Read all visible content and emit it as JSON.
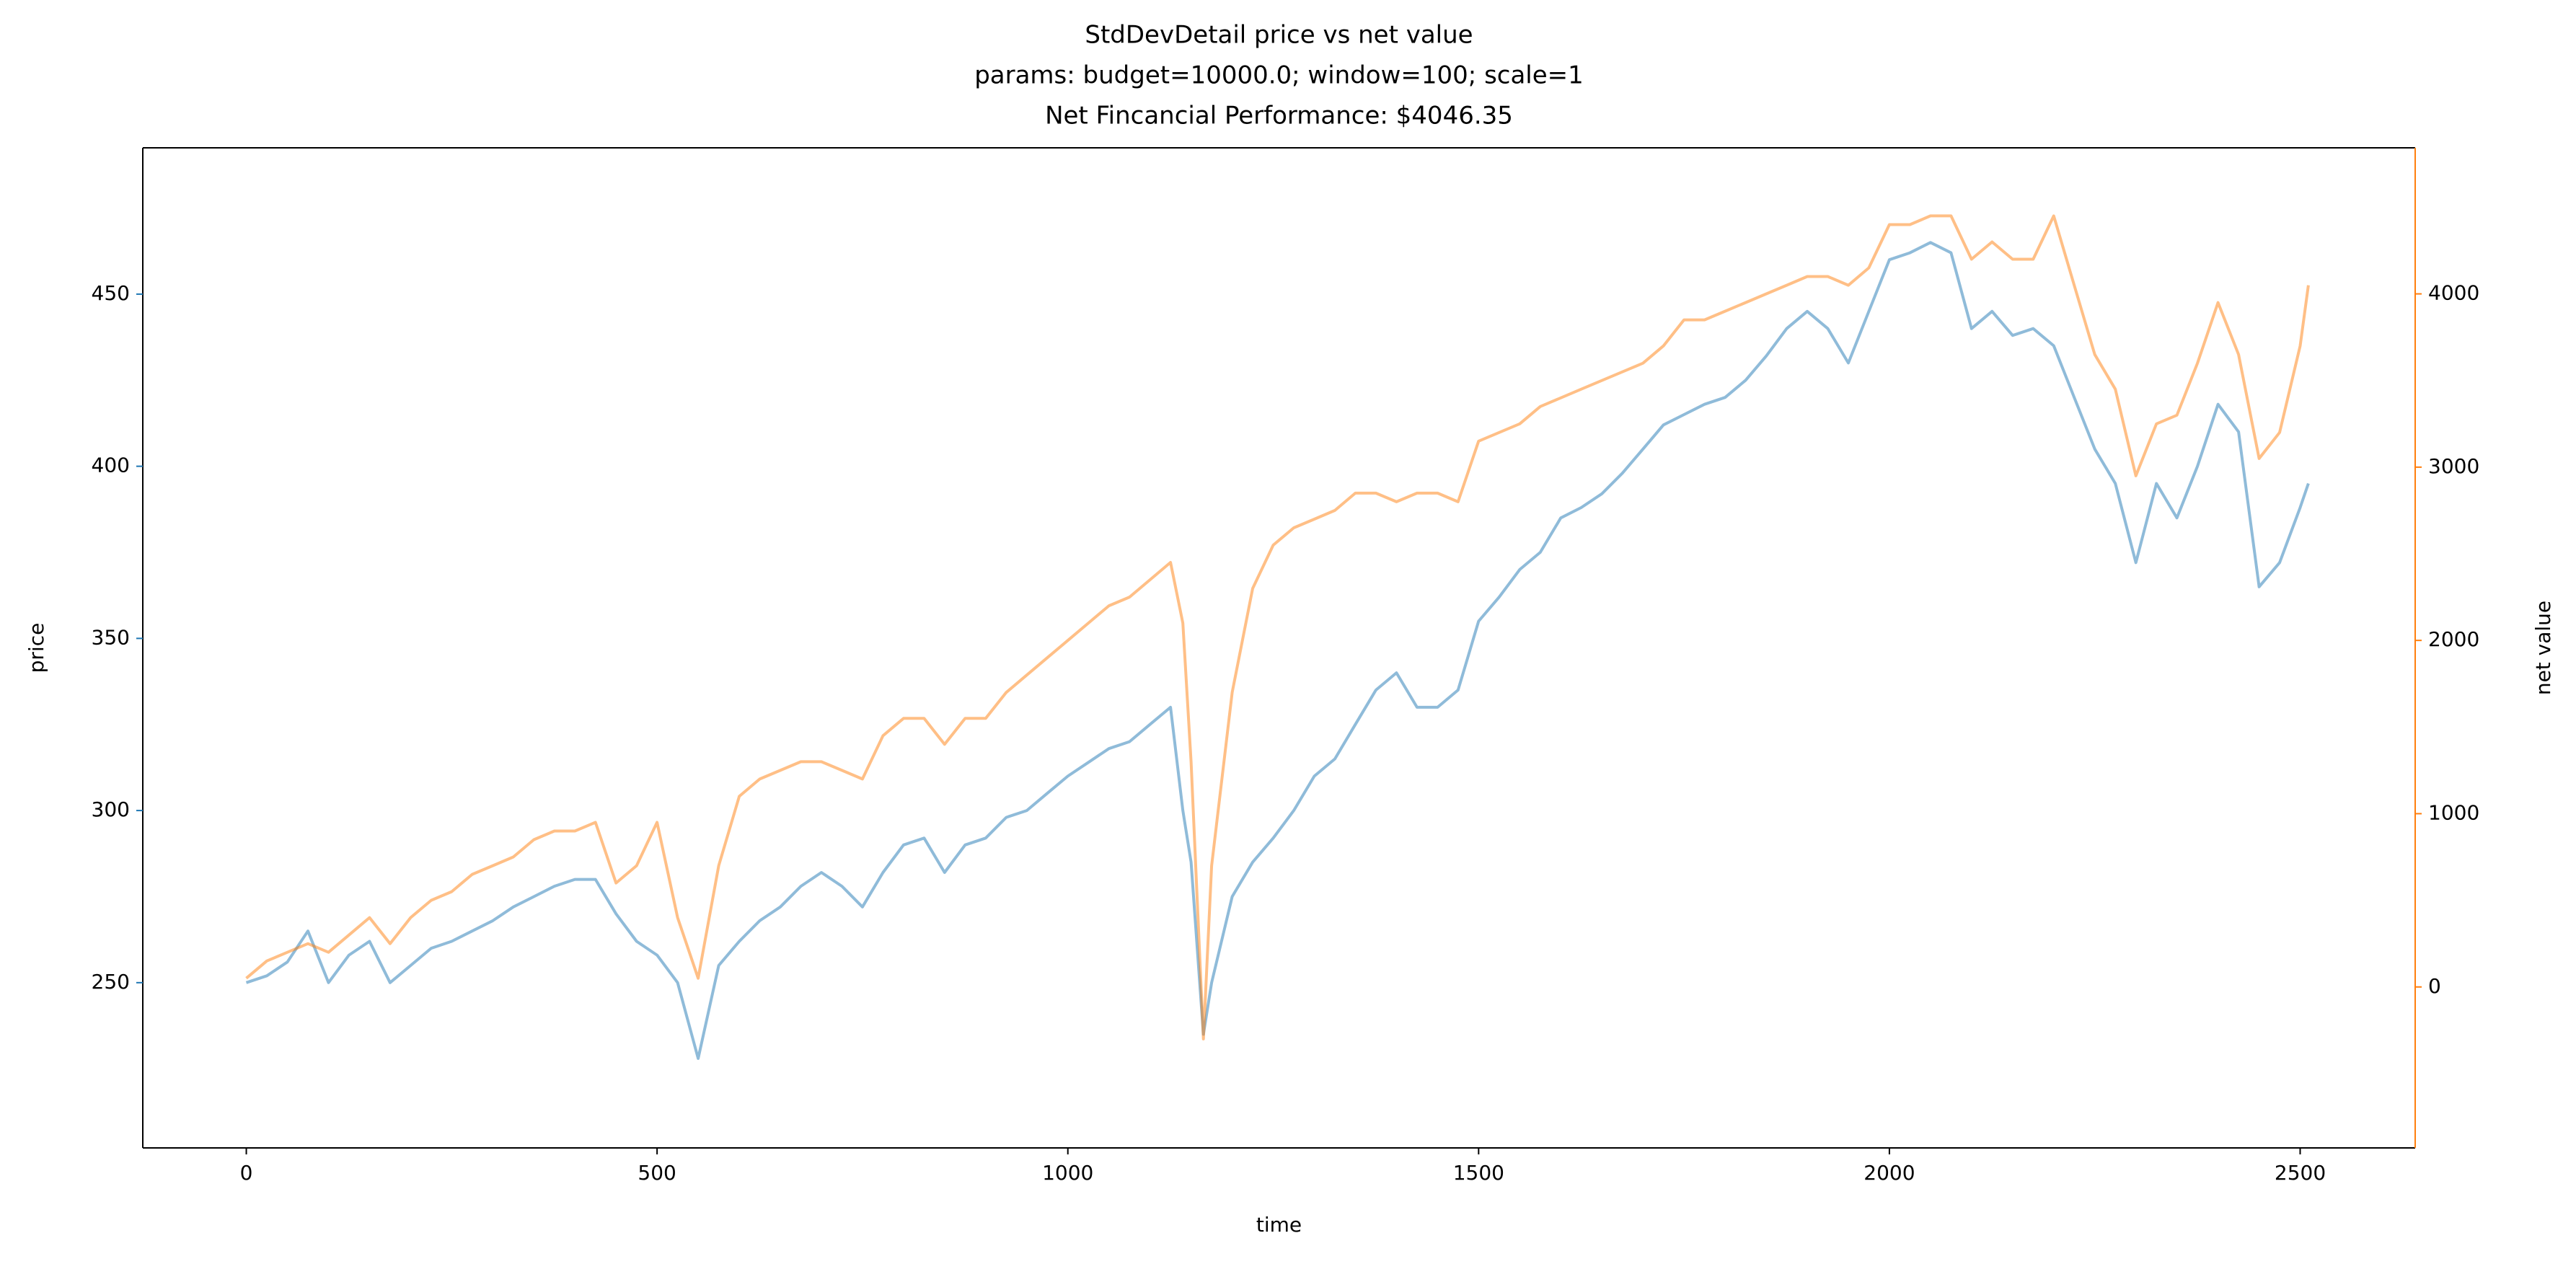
{
  "chart_data": {
    "type": "line",
    "title": [
      "StdDevDetail price vs net value",
      "params: budget=10000.0; window=100; scale=1",
      "Net Fincancial Performance: $4046.35"
    ],
    "x_label": "time",
    "y_label": "price",
    "y2_label": "net value",
    "x": [
      0,
      25,
      50,
      75,
      100,
      125,
      150,
      175,
      200,
      225,
      250,
      275,
      300,
      325,
      350,
      375,
      400,
      425,
      450,
      475,
      500,
      525,
      550,
      575,
      600,
      625,
      650,
      675,
      700,
      725,
      750,
      775,
      800,
      825,
      850,
      875,
      900,
      925,
      950,
      975,
      1000,
      1025,
      1050,
      1075,
      1100,
      1125,
      1140,
      1150,
      1165,
      1175,
      1200,
      1225,
      1250,
      1275,
      1300,
      1325,
      1350,
      1375,
      1400,
      1425,
      1450,
      1475,
      1500,
      1525,
      1550,
      1575,
      1600,
      1625,
      1650,
      1675,
      1700,
      1725,
      1750,
      1775,
      1800,
      1825,
      1850,
      1875,
      1900,
      1925,
      1950,
      1975,
      2000,
      2025,
      2050,
      2075,
      2100,
      2125,
      2150,
      2175,
      2200,
      2225,
      2250,
      2275,
      2300,
      2325,
      2350,
      2375,
      2400,
      2425,
      2450,
      2475,
      2500,
      2510
    ],
    "series": [
      {
        "name": "price",
        "color": "#1f77b4",
        "axis": "y",
        "values": [
          250,
          252,
          256,
          265,
          250,
          258,
          262,
          250,
          255,
          260,
          262,
          265,
          268,
          272,
          275,
          278,
          280,
          280,
          270,
          262,
          258,
          250,
          228,
          255,
          262,
          268,
          272,
          278,
          282,
          278,
          272,
          282,
          290,
          292,
          282,
          290,
          292,
          298,
          300,
          305,
          310,
          314,
          318,
          320,
          325,
          330,
          300,
          285,
          235,
          250,
          275,
          285,
          292,
          300,
          310,
          315,
          325,
          335,
          340,
          330,
          330,
          335,
          355,
          362,
          370,
          375,
          385,
          388,
          392,
          398,
          405,
          412,
          415,
          418,
          420,
          425,
          432,
          440,
          445,
          440,
          430,
          445,
          460,
          462,
          465,
          462,
          440,
          445,
          438,
          440,
          435,
          420,
          405,
          395,
          372,
          395,
          385,
          400,
          418,
          410,
          365,
          372,
          388,
          395
        ]
      },
      {
        "name": "net value",
        "color": "#ff7f0e",
        "axis": "y2",
        "values": [
          50,
          150,
          200,
          250,
          200,
          300,
          400,
          250,
          400,
          500,
          550,
          650,
          700,
          750,
          850,
          900,
          900,
          950,
          600,
          700,
          950,
          400,
          50,
          700,
          1100,
          1200,
          1250,
          1300,
          1300,
          1250,
          1200,
          1450,
          1550,
          1550,
          1400,
          1550,
          1550,
          1700,
          1800,
          1900,
          2000,
          2100,
          2200,
          2250,
          2350,
          2450,
          2100,
          1300,
          -300,
          700,
          1700,
          2300,
          2550,
          2650,
          2700,
          2750,
          2850,
          2850,
          2800,
          2850,
          2850,
          2800,
          3150,
          3200,
          3250,
          3350,
          3400,
          3450,
          3500,
          3550,
          3600,
          3700,
          3850,
          3850,
          3900,
          3950,
          4000,
          4050,
          4100,
          4100,
          4050,
          4150,
          4400,
          4400,
          4450,
          4450,
          4200,
          4300,
          4200,
          4200,
          4450,
          4050,
          3650,
          3450,
          2950,
          3250,
          3300,
          3600,
          3950,
          3650,
          3050,
          3200,
          3700,
          4050
        ]
      }
    ],
    "alpha": 0.5,
    "xlim": [
      -126,
      2640
    ],
    "xticks": [
      0,
      500,
      1000,
      1500,
      2000,
      2500
    ],
    "ylim": [
      202,
      492.5
    ],
    "yticks": [
      250,
      300,
      350,
      400,
      450
    ],
    "y2lim": [
      -929,
      4843
    ],
    "y2ticks": [
      0,
      1000,
      2000,
      3000,
      4000
    ],
    "grid": false
  }
}
